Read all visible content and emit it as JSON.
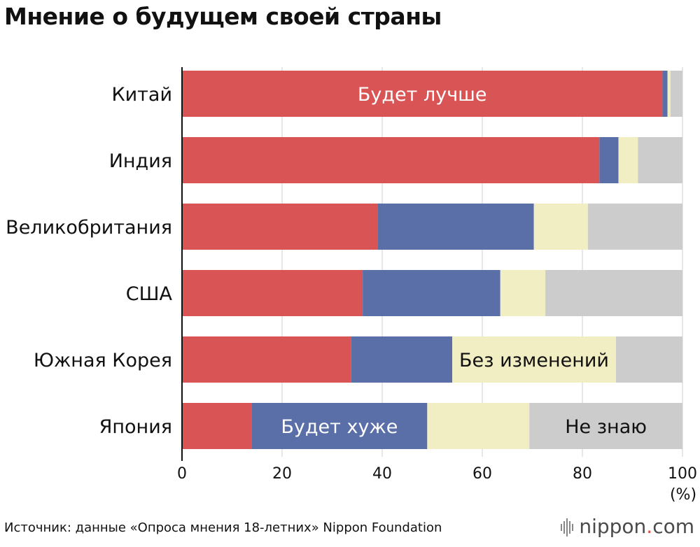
{
  "title": "Мнение о будущем своей страны",
  "source": "Источник: данные «Опроса мнения 18-летних» Nippon Foundation",
  "brand": {
    "name": "nippon",
    "dot": ".",
    "tld": "com"
  },
  "chart_data": {
    "type": "bar",
    "orientation": "horizontal",
    "stacked": true,
    "title": "Мнение о будущем своей страны",
    "categories": [
      "Китай",
      "Индия",
      "Великобритания",
      "США",
      "Южная Корея",
      "Япония"
    ],
    "series": [
      {
        "name": "Будет лучше",
        "color": "#d95455",
        "values": [
          96.0,
          83.4,
          39.1,
          36.1,
          33.8,
          13.9
        ]
      },
      {
        "name": "Будет хуже",
        "color": "#5a6ea8",
        "values": [
          1.0,
          3.8,
          31.2,
          27.5,
          20.2,
          35.1
        ]
      },
      {
        "name": "Без изменений",
        "color": "#f2eec4",
        "values": [
          0.6,
          3.9,
          10.8,
          9.0,
          32.7,
          20.4
        ]
      },
      {
        "name": "Не знаю",
        "color": "#cccccc",
        "values": [
          2.4,
          8.9,
          18.9,
          27.4,
          13.3,
          30.6
        ]
      }
    ],
    "series_labels": [
      {
        "text": "Будет лучше",
        "series": 0,
        "category": 0,
        "color": "#ffffff"
      },
      {
        "text": "Без изменений",
        "series": 2,
        "category": 4,
        "color": "#111111"
      },
      {
        "text": "Будет хуже",
        "series": 1,
        "category": 5,
        "color": "#ffffff"
      },
      {
        "text": "Не знаю",
        "series": 3,
        "category": 5,
        "color": "#111111"
      }
    ],
    "xlim": [
      0,
      100
    ],
    "xticks": [
      0,
      20,
      40,
      60,
      80,
      100
    ],
    "xticklabels": [
      "0",
      "20",
      "40",
      "60",
      "80",
      "100"
    ],
    "xunit": "(%)",
    "grid": true
  }
}
